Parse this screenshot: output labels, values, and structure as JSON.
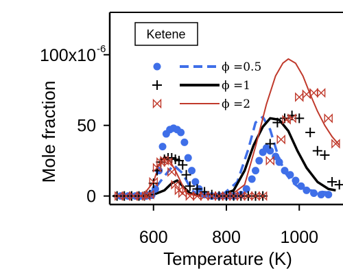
{
  "chart_data": {
    "type": "scatter",
    "species_label": "Ketene",
    "ylabel": "Mole fraction",
    "xlabel": "Temperature (K)",
    "xlim": [
      480,
      1120
    ],
    "ylim": [
      -6,
      130
    ],
    "x_ticks": [
      600,
      800,
      1000
    ],
    "y_ticks": [
      {
        "value": 0,
        "label": "0"
      },
      {
        "value": 50,
        "label": "50"
      },
      {
        "value": 100,
        "label": "100x10",
        "exponent": "-6"
      }
    ],
    "legend_position": "top-left",
    "series": [
      {
        "name": "ϕ =0.5",
        "color": "#3f6fe8",
        "marker": "circle",
        "line_style": "dashed",
        "points": [
          [
            510,
            0
          ],
          [
            530,
            0
          ],
          [
            550,
            0
          ],
          [
            565,
            0
          ],
          [
            580,
            0
          ],
          [
            595,
            0.5
          ],
          [
            605,
            5
          ],
          [
            615,
            18
          ],
          [
            625,
            35
          ],
          [
            635,
            44
          ],
          [
            645,
            47
          ],
          [
            655,
            48
          ],
          [
            665,
            47
          ],
          [
            675,
            45
          ],
          [
            685,
            38
          ],
          [
            695,
            27
          ],
          [
            705,
            18
          ],
          [
            715,
            10
          ],
          [
            725,
            5
          ],
          [
            740,
            1
          ],
          [
            760,
            0
          ],
          [
            780,
            0
          ],
          [
            800,
            0
          ],
          [
            820,
            0
          ],
          [
            840,
            1
          ],
          [
            855,
            5
          ],
          [
            870,
            12
          ],
          [
            880,
            18
          ],
          [
            890,
            25
          ],
          [
            900,
            31
          ],
          [
            910,
            34
          ],
          [
            920,
            32
          ],
          [
            935,
            28
          ],
          [
            945,
            24
          ],
          [
            960,
            18
          ],
          [
            975,
            15
          ],
          [
            990,
            11
          ],
          [
            1005,
            7
          ],
          [
            1020,
            4
          ],
          [
            1040,
            2
          ],
          [
            1060,
            1
          ],
          [
            1080,
            1
          ]
        ],
        "model": [
          [
            490,
            0
          ],
          [
            560,
            0
          ],
          [
            600,
            4
          ],
          [
            630,
            14
          ],
          [
            655,
            22
          ],
          [
            680,
            16
          ],
          [
            705,
            4
          ],
          [
            730,
            0
          ],
          [
            790,
            1
          ],
          [
            830,
            10
          ],
          [
            860,
            33
          ],
          [
            880,
            52
          ],
          [
            900,
            56
          ],
          [
            920,
            47
          ],
          [
            940,
            30
          ],
          [
            960,
            17
          ],
          [
            980,
            10
          ],
          [
            1000,
            6
          ],
          [
            1030,
            4
          ],
          [
            1060,
            3
          ],
          [
            1100,
            2
          ]
        ]
      },
      {
        "name": "ϕ =1",
        "color": "#000000",
        "marker": "plus",
        "line_style": "solid",
        "points": [
          [
            500,
            0
          ],
          [
            520,
            0
          ],
          [
            540,
            0
          ],
          [
            560,
            0
          ],
          [
            575,
            0
          ],
          [
            590,
            1
          ],
          [
            600,
            9
          ],
          [
            610,
            18
          ],
          [
            620,
            24
          ],
          [
            630,
            26
          ],
          [
            640,
            27
          ],
          [
            650,
            27
          ],
          [
            660,
            26
          ],
          [
            670,
            25
          ],
          [
            680,
            22
          ],
          [
            690,
            15
          ],
          [
            700,
            7
          ],
          [
            720,
            5
          ],
          [
            740,
            3
          ],
          [
            760,
            1
          ],
          [
            780,
            0
          ],
          [
            800,
            0
          ],
          [
            820,
            0
          ],
          [
            840,
            0
          ],
          [
            860,
            0
          ],
          [
            880,
            0
          ],
          [
            900,
            0
          ],
          [
            920,
            37
          ],
          [
            940,
            52
          ],
          [
            960,
            55
          ],
          [
            980,
            57
          ],
          [
            1000,
            55
          ],
          [
            1030,
            45
          ],
          [
            1050,
            32
          ],
          [
            1070,
            29
          ],
          [
            1090,
            10
          ],
          [
            1110,
            8
          ]
        ],
        "model": [
          [
            490,
            0
          ],
          [
            570,
            0
          ],
          [
            600,
            1
          ],
          [
            630,
            4
          ],
          [
            650,
            9
          ],
          [
            665,
            11
          ],
          [
            680,
            7
          ],
          [
            700,
            2
          ],
          [
            730,
            0
          ],
          [
            780,
            0
          ],
          [
            820,
            4
          ],
          [
            850,
            18
          ],
          [
            875,
            36
          ],
          [
            900,
            49
          ],
          [
            920,
            55
          ],
          [
            945,
            54
          ],
          [
            970,
            46
          ],
          [
            995,
            32
          ],
          [
            1020,
            20
          ],
          [
            1050,
            10
          ],
          [
            1080,
            5
          ],
          [
            1100,
            4
          ]
        ]
      },
      {
        "name": "ϕ =2",
        "color": "#c0392b",
        "marker": "bowtie",
        "line_style": "solid",
        "points": [
          [
            505,
            0
          ],
          [
            525,
            0
          ],
          [
            545,
            0
          ],
          [
            565,
            0
          ],
          [
            580,
            0
          ],
          [
            590,
            1
          ],
          [
            600,
            10
          ],
          [
            610,
            20
          ],
          [
            620,
            24
          ],
          [
            630,
            25
          ],
          [
            640,
            24
          ],
          [
            650,
            17
          ],
          [
            660,
            8
          ],
          [
            670,
            4
          ],
          [
            680,
            2
          ],
          [
            700,
            0
          ],
          [
            720,
            0
          ],
          [
            740,
            0
          ],
          [
            760,
            0
          ],
          [
            780,
            0
          ],
          [
            800,
            0
          ],
          [
            820,
            0
          ],
          [
            840,
            0
          ],
          [
            860,
            0
          ],
          [
            880,
            0
          ],
          [
            900,
            0
          ],
          [
            920,
            25
          ],
          [
            950,
            40
          ],
          [
            965,
            54
          ],
          [
            980,
            55
          ],
          [
            1000,
            70
          ],
          [
            1020,
            72
          ],
          [
            1040,
            73
          ],
          [
            1060,
            73
          ],
          [
            1080,
            55
          ],
          [
            1100,
            37
          ]
        ],
        "model": [
          [
            490,
            0
          ],
          [
            570,
            0
          ],
          [
            600,
            10
          ],
          [
            615,
            22
          ],
          [
            630,
            28
          ],
          [
            640,
            27
          ],
          [
            660,
            18
          ],
          [
            690,
            2
          ],
          [
            720,
            0
          ],
          [
            810,
            0
          ],
          [
            850,
            8
          ],
          [
            880,
            35
          ],
          [
            910,
            65
          ],
          [
            935,
            85
          ],
          [
            955,
            94
          ],
          [
            970,
            97
          ],
          [
            990,
            94
          ],
          [
            1010,
            85
          ],
          [
            1030,
            72
          ],
          [
            1050,
            60
          ],
          [
            1070,
            50
          ],
          [
            1090,
            42
          ],
          [
            1110,
            36
          ]
        ]
      }
    ]
  }
}
